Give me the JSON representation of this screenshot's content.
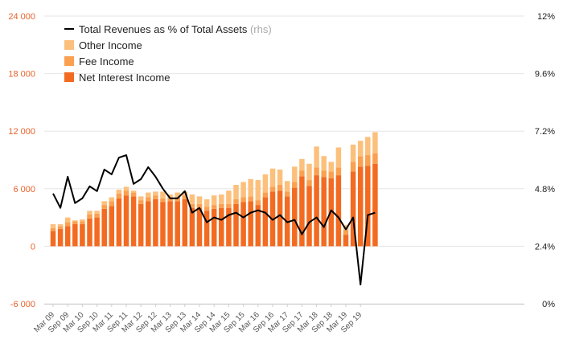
{
  "chart_data": {
    "type": "bar",
    "stacked": true,
    "series": [
      {
        "name": "Net Interest Income",
        "color": "#f26b21",
        "values": [
          1600,
          1800,
          2100,
          2300,
          2300,
          2900,
          3000,
          3900,
          4200,
          5000,
          5300,
          5200,
          4400,
          4700,
          4900,
          4600,
          4700,
          4700,
          4900,
          4000,
          4000,
          3700,
          3900,
          4000,
          4000,
          4400,
          4600,
          4700,
          4300,
          5100,
          5700,
          5800,
          5200,
          6100,
          7300,
          6300,
          7400,
          7200,
          7100,
          7400,
          1200,
          7800,
          8300,
          8400,
          8600
        ]
      },
      {
        "name": "Fee Income",
        "color": "#faa050",
        "values": [
          300,
          300,
          400,
          300,
          300,
          400,
          400,
          400,
          500,
          500,
          500,
          400,
          400,
          400,
          400,
          400,
          400,
          400,
          400,
          400,
          400,
          400,
          400,
          400,
          400,
          500,
          500,
          500,
          500,
          500,
          500,
          600,
          500,
          600,
          600,
          600,
          800,
          700,
          700,
          800,
          500,
          1000,
          1100,
          1100,
          1100
        ]
      },
      {
        "name": "Other Income",
        "color": "#fcc07d",
        "values": [
          400,
          200,
          500,
          100,
          200,
          400,
          300,
          400,
          400,
          400,
          400,
          200,
          400,
          500,
          400,
          700,
          300,
          500,
          400,
          1000,
          800,
          800,
          1000,
          1000,
          1400,
          1500,
          1600,
          1800,
          2100,
          1900,
          1900,
          1600,
          1100,
          1600,
          1200,
          1700,
          2200,
          1500,
          1000,
          2100,
          500,
          1800,
          1600,
          1900,
          2200
        ]
      },
      {
        "name": "Total Revenues as % of Total Assets",
        "axis": "right",
        "color": "#000000",
        "values": [
          4.6,
          4.0,
          5.3,
          4.2,
          4.4,
          4.9,
          4.7,
          5.6,
          5.4,
          6.1,
          6.2,
          5.0,
          5.2,
          5.7,
          5.3,
          4.8,
          4.4,
          4.4,
          4.7,
          3.8,
          4.0,
          3.4,
          3.6,
          3.5,
          3.7,
          3.8,
          3.6,
          3.8,
          3.9,
          3.8,
          3.5,
          3.7,
          3.4,
          3.5,
          2.9,
          3.4,
          3.6,
          3.2,
          3.9,
          3.6,
          3.1,
          3.6,
          0.8,
          3.7,
          3.8
        ]
      }
    ],
    "x_labels": [
      "Mar 09",
      "Sep 09",
      "Mar 10",
      "Sep 10",
      "Mar 11",
      "Sep 11",
      "Mar 12",
      "Sep 12",
      "Mar 13",
      "Sep 13",
      "Mar 14",
      "Sep 14",
      "Mar 15",
      "Sep 15",
      "Mar 16",
      "Sep 16",
      "Mar 17",
      "Sep 17",
      "Mar 18",
      "Sep 18",
      "Mar 19",
      "Sep 19"
    ],
    "y_left": {
      "ticks": [
        "24 000",
        "18 000",
        "12 000",
        "6 000",
        "0",
        "-6 000"
      ],
      "range": [
        -6000,
        24000
      ],
      "color": "#e8622b"
    },
    "y_right": {
      "ticks": [
        "12%",
        "9.6%",
        "7.2%",
        "4.8%",
        "2.4%",
        "0%"
      ],
      "range": [
        0,
        12
      ],
      "color": "#222222"
    },
    "legend": {
      "position": "top-left",
      "items": [
        {
          "label": "Total Revenues as % of Total Assets",
          "note": "(rhs)",
          "kind": "line",
          "color": "#000000"
        },
        {
          "label": "Other Income",
          "kind": "box",
          "color": "#fcc07d"
        },
        {
          "label": "Fee Income",
          "kind": "box",
          "color": "#faa050"
        },
        {
          "label": "Net Interest Income",
          "kind": "box",
          "color": "#f26b21"
        }
      ]
    },
    "grid": true
  }
}
